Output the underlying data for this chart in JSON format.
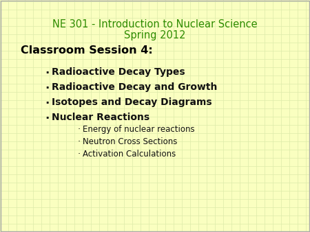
{
  "background_color": "#faffc0",
  "grid_color": "#ddeaaa",
  "title_line1": "NE 301 - Introduction to Nuclear Science",
  "title_line2": "Spring 2012",
  "title_color": "#2e8b00",
  "title_fontsize": 10.5,
  "session_label": "Classroom Session 4:",
  "session_color": "#000000",
  "session_fontsize": 11.5,
  "bullet_color": "#111111",
  "bullet_fontsize": 10.0,
  "bullet_items": [
    "Radioactive Decay Types",
    "Radioactive Decay and Growth",
    "Isotopes and Decay Diagrams",
    "Nuclear Reactions"
  ],
  "sub_bullet_fontsize": 8.5,
  "sub_bullet_items": [
    "Energy of nuclear reactions",
    "Neutron Cross Sections",
    "Activation Calculations"
  ],
  "border_color": "#aaaaaa",
  "fig_width": 4.5,
  "fig_height": 3.38,
  "dpi": 100
}
